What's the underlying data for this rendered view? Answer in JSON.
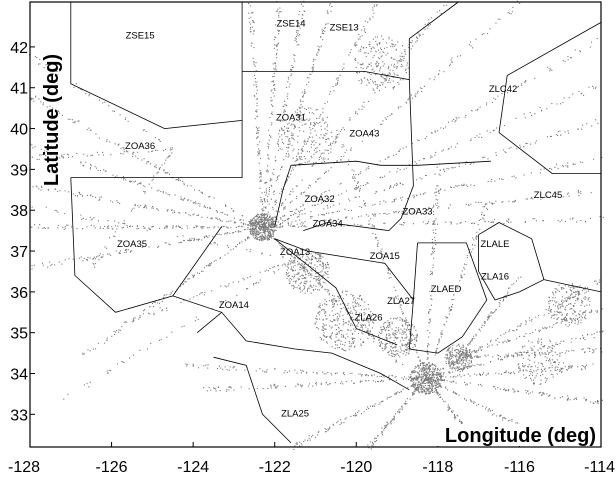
{
  "chart_data": {
    "type": "scatter",
    "xlabel": "Longitude (deg)",
    "ylabel": "Latitude (deg)",
    "xlim": [
      -128,
      -114
    ],
    "ylim": [
      32.2,
      43.1
    ],
    "xticks": [
      -128,
      -126,
      -124,
      -122,
      -120,
      -118,
      -116,
      -114
    ],
    "yticks": [
      33,
      34,
      35,
      36,
      37,
      38,
      39,
      40,
      41,
      42
    ],
    "grid": false,
    "point_color": "#7a7a7a",
    "sector_labels": [
      {
        "text": "ZSE15",
        "x": -125.3,
        "y": 42.2
      },
      {
        "text": "ZSE14",
        "x": -121.6,
        "y": 42.5
      },
      {
        "text": "ZSE13",
        "x": -120.3,
        "y": 42.4
      },
      {
        "text": "ZLC42",
        "x": -116.4,
        "y": 40.9
      },
      {
        "text": "ZOA31",
        "x": -121.6,
        "y": 40.2
      },
      {
        "text": "ZOA43",
        "x": -119.8,
        "y": 39.8
      },
      {
        "text": "ZOA36",
        "x": -125.3,
        "y": 39.5
      },
      {
        "text": "ZOA32",
        "x": -120.9,
        "y": 38.2
      },
      {
        "text": "ZLC45",
        "x": -115.3,
        "y": 38.3
      },
      {
        "text": "ZOA33",
        "x": -118.5,
        "y": 37.9
      },
      {
        "text": "ZOA34",
        "x": -120.7,
        "y": 37.6
      },
      {
        "text": "ZLALE",
        "x": -116.6,
        "y": 37.1
      },
      {
        "text": "ZOA35",
        "x": -125.5,
        "y": 37.1
      },
      {
        "text": "ZOA13",
        "x": -121.5,
        "y": 36.9
      },
      {
        "text": "ZOA15",
        "x": -119.3,
        "y": 36.8
      },
      {
        "text": "ZLA16",
        "x": -116.6,
        "y": 36.3
      },
      {
        "text": "ZLAED",
        "x": -117.8,
        "y": 36.0
      },
      {
        "text": "ZLA27",
        "x": -118.9,
        "y": 35.7
      },
      {
        "text": "ZOA14",
        "x": -123.0,
        "y": 35.6
      },
      {
        "text": "ZLA26",
        "x": -119.7,
        "y": 35.3
      },
      {
        "text": "ZLA25",
        "x": -121.5,
        "y": 32.95
      }
    ],
    "sector_boundaries": [
      [
        [
          -122.8,
          43.1
        ],
        [
          -122.8,
          40.2
        ],
        [
          -124.7,
          40.0
        ],
        [
          -127.0,
          41.1
        ],
        [
          -127.0,
          43.1
        ]
      ],
      [
        [
          -122.8,
          41.4
        ],
        [
          -119.8,
          41.4
        ],
        [
          -118.7,
          41.2
        ],
        [
          -118.7,
          42.2
        ],
        [
          -117.5,
          43.1
        ]
      ],
      [
        [
          -122.8,
          40.2
        ],
        [
          -122.8,
          38.8
        ],
        [
          -123.7,
          38.8
        ],
        [
          -127.0,
          38.8
        ]
      ],
      [
        [
          -127.0,
          38.8
        ],
        [
          -126.9,
          36.4
        ],
        [
          -125.9,
          35.5
        ],
        [
          -124.5,
          35.9
        ],
        [
          -123.3,
          37.6
        ]
      ],
      [
        [
          -122.0,
          37.6
        ],
        [
          -121.8,
          38.5
        ],
        [
          -121.6,
          39.1
        ],
        [
          -120.0,
          39.2
        ],
        [
          -119.4,
          39.1
        ],
        [
          -118.5,
          39.1
        ],
        [
          -116.7,
          39.2
        ]
      ],
      [
        [
          -118.7,
          41.2
        ],
        [
          -118.6,
          38.6
        ],
        [
          -118.9,
          37.8
        ],
        [
          -119.2,
          37.5
        ],
        [
          -120.7,
          37.7
        ],
        [
          -121.3,
          37.5
        ]
      ],
      [
        [
          -116.5,
          39.9
        ],
        [
          -115.2,
          38.9
        ],
        [
          -114.0,
          38.9
        ]
      ],
      [
        [
          -116.5,
          39.9
        ],
        [
          -116.3,
          41.3
        ],
        [
          -114.0,
          42.6
        ]
      ],
      [
        [
          -117.0,
          37.4
        ],
        [
          -116.5,
          37.7
        ],
        [
          -115.7,
          37.3
        ],
        [
          -115.4,
          36.3
        ],
        [
          -116.0,
          36.0
        ],
        [
          -116.6,
          35.8
        ],
        [
          -117.0,
          36.5
        ],
        [
          -117.0,
          37.4
        ]
      ],
      [
        [
          -118.5,
          37.2
        ],
        [
          -117.3,
          37.2
        ],
        [
          -116.8,
          35.8
        ],
        [
          -117.4,
          34.9
        ],
        [
          -118.0,
          34.5
        ],
        [
          -118.7,
          34.6
        ],
        [
          -118.6,
          35.8
        ],
        [
          -118.5,
          37.2
        ]
      ],
      [
        [
          -122.0,
          37.3
        ],
        [
          -120.5,
          36.1
        ],
        [
          -120.0,
          35.1
        ],
        [
          -119.0,
          34.7
        ]
      ],
      [
        [
          -122.0,
          37.3
        ],
        [
          -121.2,
          37.0
        ],
        [
          -119.3,
          36.7
        ],
        [
          -118.6,
          35.8
        ]
      ],
      [
        [
          -124.5,
          35.9
        ],
        [
          -123.3,
          35.5
        ],
        [
          -122.7,
          34.8
        ],
        [
          -121.5,
          34.6
        ],
        [
          -120.6,
          34.5
        ],
        [
          -119.4,
          34.0
        ],
        [
          -118.7,
          33.6
        ]
      ],
      [
        [
          -123.5,
          34.4
        ],
        [
          -122.7,
          34.2
        ],
        [
          -122.3,
          33.0
        ],
        [
          -121.6,
          32.3
        ]
      ],
      [
        [
          -123.3,
          35.5
        ],
        [
          -123.9,
          35.0
        ]
      ],
      [
        [
          -114.0,
          36.0
        ],
        [
          -115.4,
          36.3
        ]
      ]
    ]
  }
}
